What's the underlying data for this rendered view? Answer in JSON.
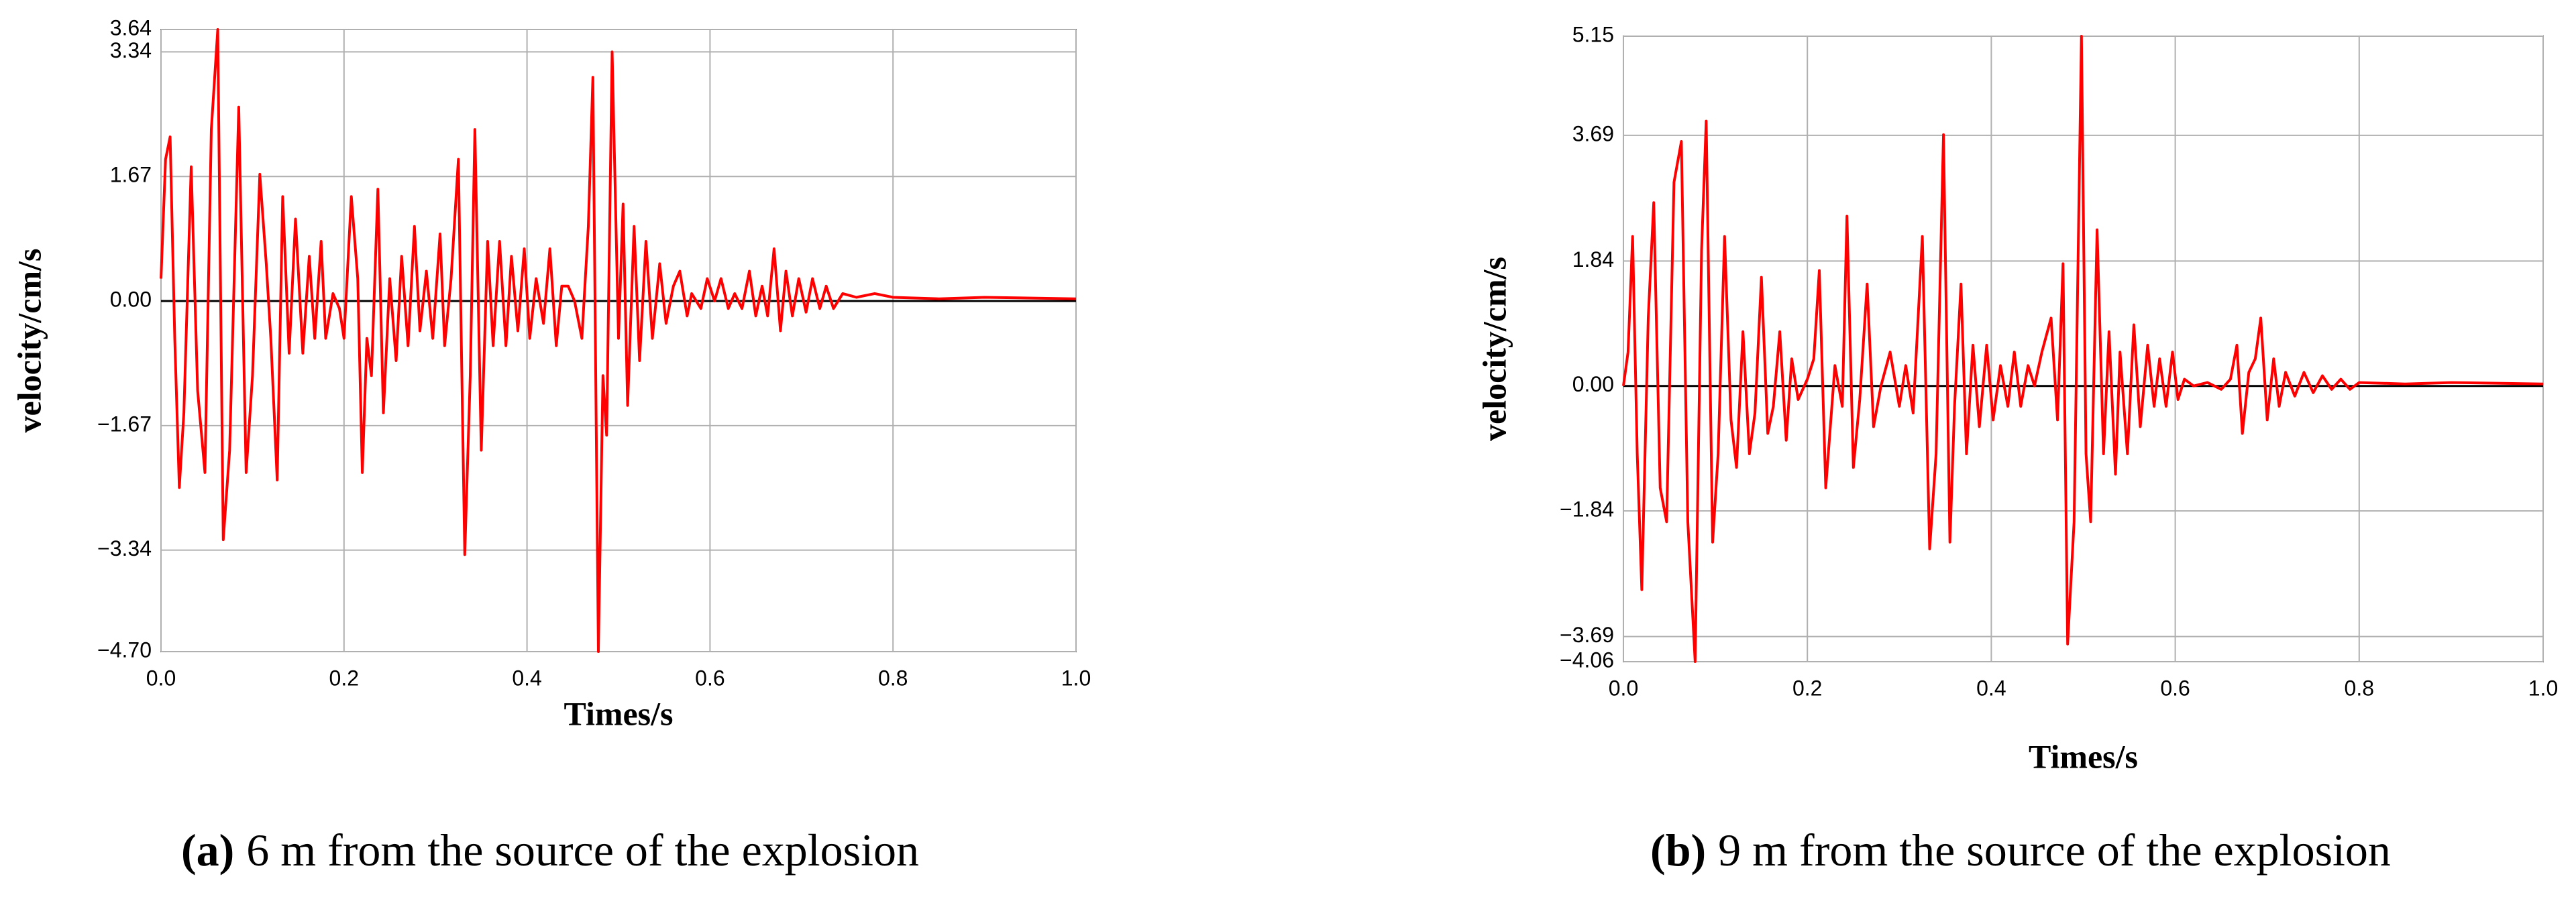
{
  "chart_data": [
    {
      "type": "line",
      "x_label": "Times/s",
      "y_label": "velocity/cm/s",
      "caption_label": "(a)",
      "caption": "6 m from the source of the explosion",
      "color": "#ff0000",
      "grid": true,
      "xlim": [
        0,
        1
      ],
      "xticks": [
        {
          "value": 0,
          "label": "0.0"
        },
        0.2,
        0.4,
        0.6,
        0.8,
        {
          "value": 1,
          "label": "1.0"
        }
      ],
      "ylim": [
        -4.7,
        3.64
      ],
      "yticks": [
        3.64,
        3.34,
        1.67,
        {
          "value": 0,
          "label": "0.00"
        },
        {
          "value": -1.67,
          "label": "−1.67"
        },
        {
          "value": -3.34,
          "label": "−3.34"
        },
        {
          "value": -4.7,
          "label": "−4.70"
        }
      ],
      "x": [
        0,
        0.005,
        0.01,
        0.015,
        0.02,
        0.025,
        0.033,
        0.04,
        0.048,
        0.055,
        0.062,
        0.068,
        0.075,
        0.085,
        0.093,
        0.1,
        0.108,
        0.115,
        0.12,
        0.127,
        0.133,
        0.14,
        0.147,
        0.155,
        0.162,
        0.168,
        0.175,
        0.18,
        0.188,
        0.195,
        0.2,
        0.208,
        0.215,
        0.22,
        0.225,
        0.23,
        0.237,
        0.243,
        0.25,
        0.257,
        0.263,
        0.27,
        0.277,
        0.283,
        0.29,
        0.297,
        0.305,
        0.31,
        0.317,
        0.325,
        0.332,
        0.338,
        0.343,
        0.35,
        0.357,
        0.363,
        0.37,
        0.377,
        0.383,
        0.39,
        0.397,
        0.403,
        0.41,
        0.418,
        0.425,
        0.432,
        0.438,
        0.445,
        0.452,
        0.46,
        0.467,
        0.472,
        0.478,
        0.483,
        0.487,
        0.493,
        0.5,
        0.505,
        0.51,
        0.517,
        0.523,
        0.53,
        0.537,
        0.545,
        0.552,
        0.56,
        0.567,
        0.575,
        0.58,
        0.59,
        0.597,
        0.605,
        0.612,
        0.62,
        0.627,
        0.635,
        0.643,
        0.65,
        0.657,
        0.663,
        0.67,
        0.677,
        0.683,
        0.69,
        0.697,
        0.705,
        0.712,
        0.72,
        0.727,
        0.735,
        0.745,
        0.76,
        0.78,
        0.8,
        0.85,
        0.9,
        1.0
      ],
      "values": [
        0.3,
        1.9,
        2.2,
        -0.5,
        -2.5,
        -1.5,
        1.8,
        -1.2,
        -2.3,
        2.3,
        3.64,
        -3.2,
        -2.0,
        2.6,
        -2.3,
        -1.0,
        1.7,
        0.5,
        -0.5,
        -2.4,
        1.4,
        -0.7,
        1.1,
        -0.7,
        0.6,
        -0.5,
        0.8,
        -0.5,
        0.1,
        -0.1,
        -0.5,
        1.4,
        0.3,
        -2.3,
        -0.5,
        -1.0,
        1.5,
        -1.5,
        0.3,
        -0.8,
        0.6,
        -0.6,
        1.0,
        -0.4,
        0.4,
        -0.5,
        0.9,
        -0.6,
        0.3,
        1.9,
        -3.4,
        -1.0,
        2.3,
        -2.0,
        0.8,
        -0.6,
        0.8,
        -0.6,
        0.6,
        -0.4,
        0.7,
        -0.5,
        0.3,
        -0.3,
        0.7,
        -0.6,
        0.2,
        0.2,
        0.0,
        -0.5,
        1.0,
        3.0,
        -4.7,
        -1.0,
        -1.8,
        3.34,
        -0.5,
        1.3,
        -1.4,
        1.0,
        -0.8,
        0.8,
        -0.5,
        0.5,
        -0.3,
        0.2,
        0.4,
        -0.2,
        0.1,
        -0.1,
        0.3,
        0.0,
        0.3,
        -0.1,
        0.1,
        -0.1,
        0.4,
        -0.2,
        0.2,
        -0.2,
        0.7,
        -0.4,
        0.4,
        -0.2,
        0.3,
        -0.15,
        0.3,
        -0.1,
        0.2,
        -0.1,
        0.1,
        0.05,
        0.1,
        0.05,
        0.03,
        0.05,
        0.03
      ]
    },
    {
      "type": "line",
      "x_label": "Times/s",
      "y_label": "velocity/cm/s",
      "caption_label": "(b)",
      "caption": "9 m from the source of the explosion",
      "color": "#ff0000",
      "grid": true,
      "xlim": [
        0,
        1
      ],
      "xticks": [
        {
          "value": 0,
          "label": "0.0"
        },
        0.2,
        0.4,
        0.6,
        0.8,
        {
          "value": 1,
          "label": "1.0"
        }
      ],
      "ylim": [
        -4.06,
        5.15
      ],
      "yticks": [
        5.15,
        3.69,
        1.84,
        {
          "value": 0,
          "label": "0.00"
        },
        {
          "value": -1.84,
          "label": "−1.84"
        },
        {
          "value": -3.69,
          "label": "−3.69"
        },
        {
          "value": -4.06,
          "label": "−4.06"
        }
      ],
      "x": [
        0,
        0.005,
        0.01,
        0.015,
        0.02,
        0.027,
        0.033,
        0.04,
        0.047,
        0.055,
        0.063,
        0.07,
        0.078,
        0.085,
        0.09,
        0.097,
        0.103,
        0.11,
        0.117,
        0.123,
        0.13,
        0.137,
        0.143,
        0.15,
        0.157,
        0.163,
        0.17,
        0.177,
        0.183,
        0.19,
        0.2,
        0.207,
        0.213,
        0.22,
        0.23,
        0.238,
        0.243,
        0.25,
        0.257,
        0.265,
        0.272,
        0.28,
        0.29,
        0.3,
        0.307,
        0.315,
        0.325,
        0.333,
        0.34,
        0.348,
        0.355,
        0.36,
        0.367,
        0.373,
        0.38,
        0.387,
        0.395,
        0.402,
        0.41,
        0.418,
        0.425,
        0.432,
        0.44,
        0.447,
        0.455,
        0.465,
        0.472,
        0.478,
        0.483,
        0.49,
        0.498,
        0.503,
        0.508,
        0.515,
        0.522,
        0.528,
        0.535,
        0.54,
        0.548,
        0.555,
        0.562,
        0.57,
        0.577,
        0.583,
        0.59,
        0.597,
        0.603,
        0.61,
        0.62,
        0.635,
        0.65,
        0.66,
        0.667,
        0.673,
        0.68,
        0.687,
        0.693,
        0.7,
        0.707,
        0.713,
        0.72,
        0.73,
        0.74,
        0.75,
        0.76,
        0.77,
        0.78,
        0.79,
        0.8,
        0.85,
        0.9,
        1.0
      ],
      "values": [
        0.0,
        0.5,
        2.2,
        -1.0,
        -3.0,
        1.0,
        2.7,
        -1.5,
        -2.0,
        3.0,
        3.6,
        -2.0,
        -4.06,
        2.0,
        3.9,
        -2.3,
        -1.0,
        2.2,
        -0.5,
        -1.2,
        0.8,
        -1.0,
        -0.4,
        1.6,
        -0.7,
        -0.3,
        0.8,
        -0.8,
        0.4,
        -0.2,
        0.1,
        0.4,
        1.7,
        -1.5,
        0.3,
        -0.3,
        2.5,
        -1.2,
        -0.2,
        1.5,
        -0.6,
        0.0,
        0.5,
        -0.3,
        0.3,
        -0.4,
        2.2,
        -2.4,
        -1.0,
        3.7,
        -2.3,
        -0.3,
        1.5,
        -1.0,
        0.6,
        -0.6,
        0.6,
        -0.5,
        0.3,
        -0.3,
        0.5,
        -0.3,
        0.3,
        0.0,
        0.5,
        1.0,
        -0.5,
        1.8,
        -3.8,
        -2.0,
        5.15,
        -1.0,
        -2.0,
        2.3,
        -1.0,
        0.8,
        -1.3,
        0.5,
        -1.0,
        0.9,
        -0.6,
        0.6,
        -0.3,
        0.4,
        -0.3,
        0.5,
        -0.2,
        0.1,
        0.0,
        0.05,
        -0.05,
        0.1,
        0.6,
        -0.7,
        0.2,
        0.4,
        1.0,
        -0.5,
        0.4,
        -0.3,
        0.2,
        -0.15,
        0.2,
        -0.1,
        0.15,
        -0.05,
        0.1,
        -0.05,
        0.05,
        0.03,
        0.05,
        0.03
      ]
    }
  ]
}
